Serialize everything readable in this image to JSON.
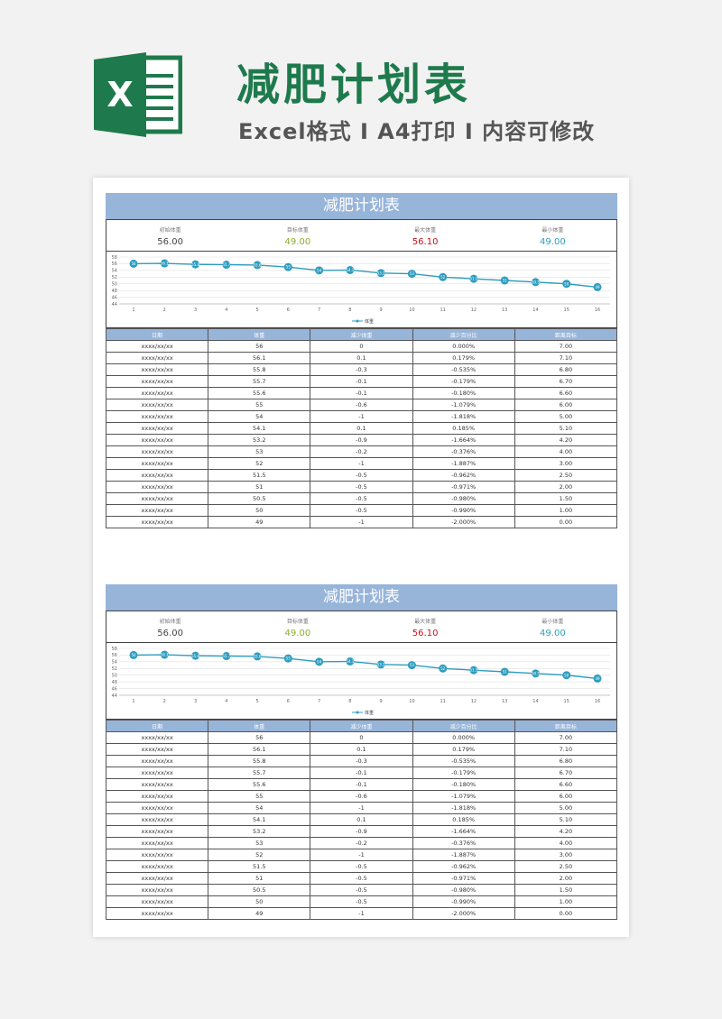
{
  "banner": {
    "title": "减肥计划表",
    "subtitle": "Excel格式 I A4打印 I 内容可修改",
    "logo_letter": "X"
  },
  "sheet": {
    "header": "减肥计划表",
    "summary": [
      {
        "label": "初始体重",
        "value": "56.00"
      },
      {
        "label": "目标体重",
        "value": "49.00"
      },
      {
        "label": "最大体重",
        "value": "56.10"
      },
      {
        "label": "最小体重",
        "value": "49.00"
      }
    ],
    "columns": [
      "日期",
      "体重",
      "减少体重",
      "减少百分比",
      "距离目标"
    ],
    "rows": [
      [
        "xxxx/xx/xx",
        "56",
        "0",
        "0.000%",
        "7.00"
      ],
      [
        "xxxx/xx/xx",
        "56.1",
        "0.1",
        "0.179%",
        "7.10"
      ],
      [
        "xxxx/xx/xx",
        "55.8",
        "-0.3",
        "-0.535%",
        "6.80"
      ],
      [
        "xxxx/xx/xx",
        "55.7",
        "-0.1",
        "-0.179%",
        "6.70"
      ],
      [
        "xxxx/xx/xx",
        "55.6",
        "-0.1",
        "-0.180%",
        "6.60"
      ],
      [
        "xxxx/xx/xx",
        "55",
        "-0.6",
        "-1.079%",
        "6.00"
      ],
      [
        "xxxx/xx/xx",
        "54",
        "-1",
        "-1.818%",
        "5.00"
      ],
      [
        "xxxx/xx/xx",
        "54.1",
        "0.1",
        "0.185%",
        "5.10"
      ],
      [
        "xxxx/xx/xx",
        "53.2",
        "-0.9",
        "-1.664%",
        "4.20"
      ],
      [
        "xxxx/xx/xx",
        "53",
        "-0.2",
        "-0.376%",
        "4.00"
      ],
      [
        "xxxx/xx/xx",
        "52",
        "-1",
        "-1.887%",
        "3.00"
      ],
      [
        "xxxx/xx/xx",
        "51.5",
        "-0.5",
        "-0.962%",
        "2.50"
      ],
      [
        "xxxx/xx/xx",
        "51",
        "-0.5",
        "-0.971%",
        "2.00"
      ],
      [
        "xxxx/xx/xx",
        "50.5",
        "-0.5",
        "-0.980%",
        "1.50"
      ],
      [
        "xxxx/xx/xx",
        "50",
        "-0.5",
        "-0.990%",
        "1.00"
      ],
      [
        "xxxx/xx/xx",
        "49",
        "-1",
        "-2.000%",
        "0.00"
      ]
    ]
  },
  "chart_data": {
    "type": "line",
    "x": [
      1,
      2,
      3,
      4,
      5,
      6,
      7,
      8,
      9,
      10,
      11,
      12,
      13,
      14,
      15,
      16
    ],
    "series": [
      {
        "name": "体重",
        "values": [
          56,
          56.1,
          55.8,
          55.7,
          55.6,
          55,
          54,
          54.1,
          53.2,
          53,
          52,
          51.5,
          51,
          50.5,
          50,
          49
        ]
      }
    ],
    "point_labels": [
      "56",
      "56.1",
      "55.8",
      "55.7",
      "55.6",
      "55",
      "54",
      "54.1",
      "53.2",
      "53",
      "52",
      "51.5",
      "51",
      "50.5",
      "50",
      "49"
    ],
    "ylim": [
      44,
      58
    ],
    "yticks": [
      "58",
      "56",
      "54",
      "52",
      "50",
      "48",
      "46",
      "44"
    ],
    "xticks": [
      "1",
      "2",
      "3",
      "4",
      "5",
      "6",
      "7",
      "8",
      "9",
      "10",
      "11",
      "12",
      "13",
      "14",
      "15",
      "16"
    ],
    "grid": true,
    "legend": "bottom",
    "colors": {
      "line": "#2e9dbf",
      "grid": "#e0e0e0"
    }
  },
  "colors": {
    "brand_green": "#1e7a4c",
    "header_blue": "#97b4d9"
  }
}
